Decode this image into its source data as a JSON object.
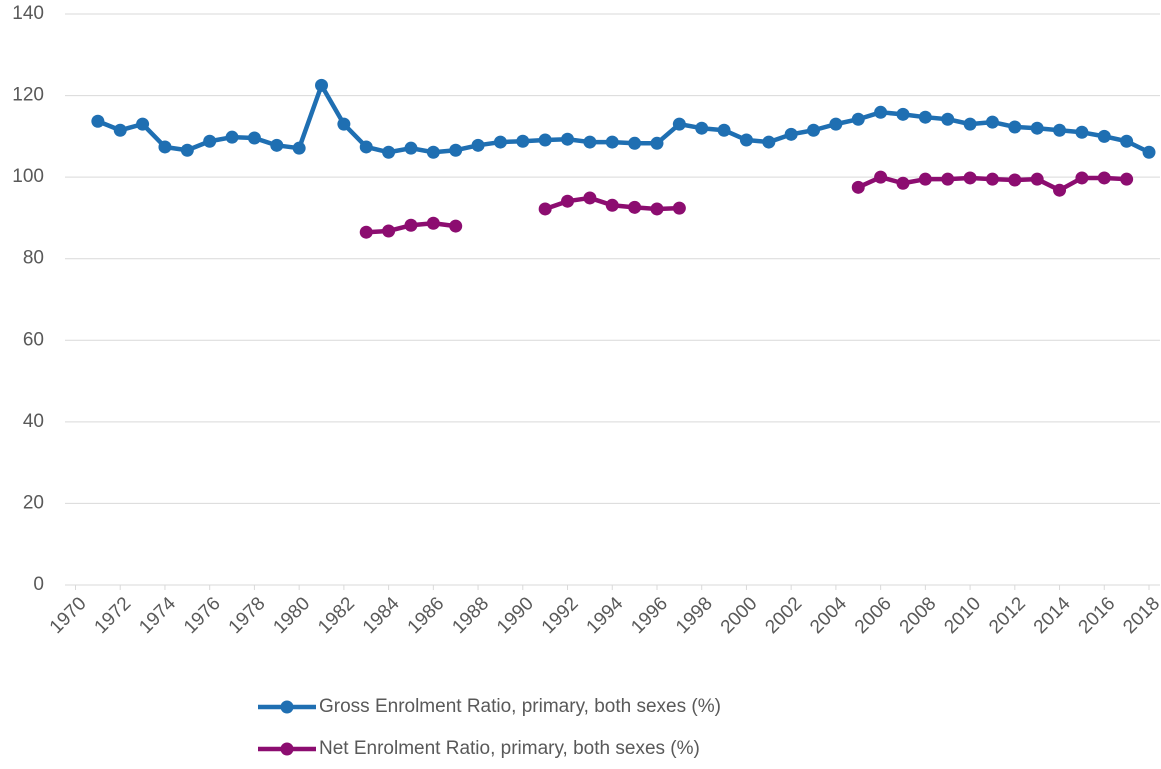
{
  "chart_data": {
    "type": "line",
    "x": [
      1971,
      1972,
      1973,
      1974,
      1975,
      1976,
      1977,
      1978,
      1979,
      1980,
      1981,
      1982,
      1983,
      1984,
      1985,
      1986,
      1987,
      1988,
      1989,
      1990,
      1991,
      1992,
      1993,
      1994,
      1995,
      1996,
      1997,
      1998,
      1999,
      2000,
      2001,
      2002,
      2003,
      2004,
      2005,
      2006,
      2007,
      2008,
      2009,
      2010,
      2011,
      2012,
      2013,
      2014,
      2015,
      2016,
      2017,
      2018
    ],
    "series": [
      {
        "name": "Gross Enrolment Ratio, primary, both sexes (%)",
        "color": "#1f6fb2",
        "values": [
          113.7,
          111.5,
          113,
          107.4,
          106.6,
          108.8,
          109.8,
          109.6,
          107.8,
          107.1,
          122.5,
          113,
          107.4,
          106.1,
          107.1,
          106.1,
          106.6,
          107.8,
          108.6,
          108.8,
          109.1,
          109.3,
          108.6,
          108.6,
          108.3,
          108.3,
          113,
          112,
          111.5,
          109.1,
          108.6,
          110.5,
          111.5,
          113,
          114.2,
          115.9,
          115.4,
          114.7,
          114.2,
          113,
          113.5,
          112.3,
          112,
          111.5,
          111,
          110,
          108.8,
          106.1
        ]
      },
      {
        "name": "Net Enrolment Ratio, primary, both sexes (%)",
        "color": "#8c0d70",
        "values": [
          null,
          null,
          null,
          null,
          null,
          null,
          null,
          null,
          null,
          null,
          null,
          null,
          86.5,
          86.8,
          88.2,
          88.7,
          88,
          null,
          null,
          null,
          92.2,
          94.1,
          94.9,
          93.1,
          92.6,
          92.2,
          92.4,
          null,
          null,
          null,
          null,
          null,
          null,
          null,
          97.5,
          100,
          98.5,
          99.5,
          99.5,
          99.8,
          99.5,
          99.3,
          99.5,
          96.8,
          99.8,
          99.8,
          99.5,
          null
        ]
      }
    ],
    "xlim": [
      1970,
      2018
    ],
    "xticks": [
      1970,
      1972,
      1974,
      1976,
      1978,
      1980,
      1982,
      1984,
      1986,
      1988,
      1990,
      1992,
      1994,
      1996,
      1998,
      2000,
      2002,
      2004,
      2006,
      2008,
      2010,
      2012,
      2014,
      2016,
      2018
    ],
    "ylim": [
      0,
      140
    ],
    "yticks": [
      0,
      20,
      40,
      60,
      80,
      100,
      120,
      140
    ],
    "grid": true,
    "legend": "bottom"
  }
}
